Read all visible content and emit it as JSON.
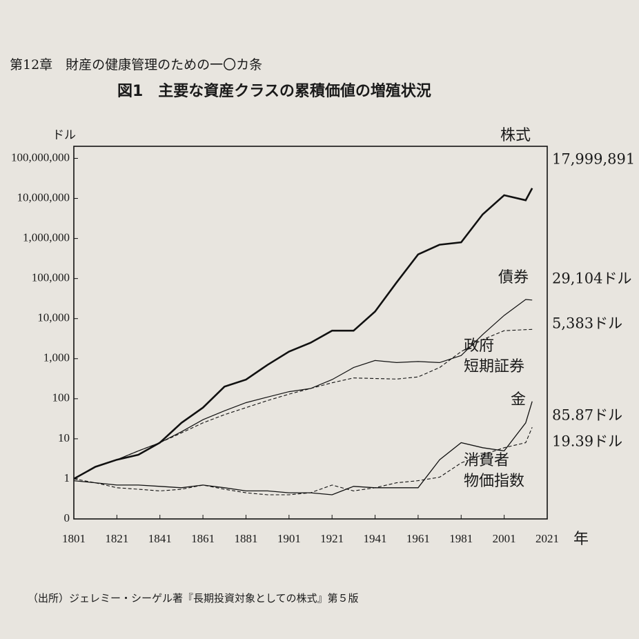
{
  "header": "第12章　財産の健康管理のための一〇カ条",
  "chart_data": {
    "type": "line",
    "title": "図1　主要な資産クラスの累積価値の増殖状況",
    "y_unit": "ドル",
    "x_unit": "年",
    "source": "（出所）ジェレミー・シーゲル著『長期投資対象としての株式』第５版",
    "log_y": true,
    "xlim": [
      1801,
      2021
    ],
    "xticks": [
      1801,
      1821,
      1841,
      1861,
      1881,
      1901,
      1921,
      1941,
      1961,
      1981,
      2001,
      2021
    ],
    "ylim": [
      0.1,
      200000000
    ],
    "yticks": [
      {
        "value": 0.1,
        "label": "0"
      },
      1,
      10,
      100,
      {
        "value": 1000,
        "label": "1,000"
      },
      {
        "value": 10000,
        "label": "10,000"
      },
      {
        "value": 100000,
        "label": "100,000"
      },
      {
        "value": 1000000,
        "label": "1,000,000"
      },
      {
        "value": 10000000,
        "label": "10,000,000"
      },
      {
        "value": 100000000,
        "label": "100,000,000"
      }
    ],
    "x": [
      1801,
      1811,
      1821,
      1831,
      1841,
      1851,
      1861,
      1871,
      1881,
      1891,
      1901,
      1911,
      1921,
      1931,
      1941,
      1951,
      1961,
      1971,
      1981,
      1991,
      2001,
      2011,
      2014
    ],
    "series": [
      {
        "name": "株式",
        "color": "#111111",
        "width": 2.6,
        "dashed": false,
        "end_label": "17,999,891",
        "values": [
          1,
          2,
          3,
          4,
          8,
          25,
          60,
          200,
          300,
          700,
          1500,
          2500,
          5000,
          5000,
          15000,
          80000,
          400000,
          700000,
          800000,
          4000000,
          12000000,
          9000000,
          17999891
        ]
      },
      {
        "name": "債券",
        "color": "#111111",
        "width": 1.2,
        "dashed": false,
        "end_label": "29,104ドル",
        "values": [
          1,
          2,
          3,
          5,
          8,
          15,
          30,
          50,
          80,
          110,
          150,
          180,
          300,
          600,
          900,
          800,
          850,
          800,
          1200,
          4000,
          12000,
          30000,
          29104
        ]
      },
      {
        "name": "政府短期証券",
        "color": "#111111",
        "width": 1.1,
        "dashed": true,
        "end_label": "5,383ドル",
        "values": [
          1,
          2,
          3,
          5,
          8,
          14,
          25,
          40,
          60,
          90,
          130,
          180,
          250,
          330,
          320,
          310,
          350,
          600,
          1500,
          3000,
          5000,
          5300,
          5383
        ]
      },
      {
        "name": "金",
        "color": "#111111",
        "width": 1.3,
        "dashed": false,
        "end_label": "85.87ドル",
        "values": [
          0.9,
          0.8,
          0.7,
          0.7,
          0.65,
          0.6,
          0.7,
          0.6,
          0.5,
          0.5,
          0.45,
          0.45,
          0.4,
          0.65,
          0.6,
          0.6,
          0.6,
          3,
          8,
          6,
          5,
          25,
          85.87
        ]
      },
      {
        "name": "消費者物価指数",
        "color": "#111111",
        "width": 1.1,
        "dashed": true,
        "end_label": "19.39ドル",
        "values": [
          1,
          0.8,
          0.6,
          0.55,
          0.5,
          0.55,
          0.7,
          0.55,
          0.45,
          0.4,
          0.4,
          0.45,
          0.7,
          0.5,
          0.6,
          0.8,
          0.9,
          1.1,
          2.5,
          4,
          6,
          8,
          19.39
        ]
      }
    ]
  }
}
